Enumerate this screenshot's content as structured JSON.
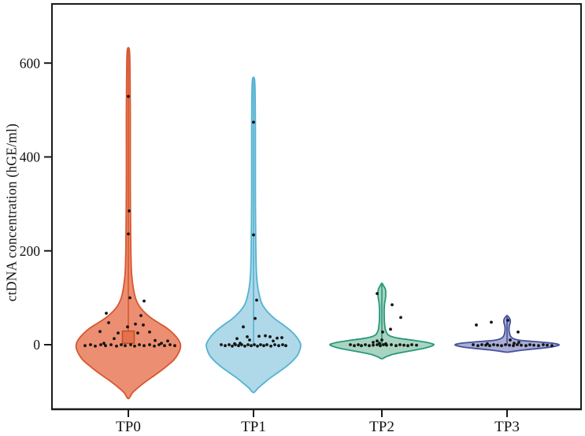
{
  "figure": {
    "background": "#ffffff",
    "frame_color": "#1a1a1a"
  },
  "chart_data": {
    "type": "violin",
    "title": "",
    "xlabel": "",
    "ylabel": "ctDNA concentration (hGE/ml)",
    "categories": [
      "TP0",
      "TP1",
      "TP2",
      "TP3"
    ],
    "yticks": [
      0,
      200,
      400,
      600
    ],
    "ylim": [
      -137,
      726
    ],
    "grid": false,
    "legend": "none",
    "point_color": "#141414",
    "groups": [
      {
        "label": "TP0",
        "fill": "#EC8E71",
        "stroke": "#D6572F",
        "range": [
          -115,
          633
        ],
        "profile": [
          [
            633,
            0
          ],
          [
            622,
            1.6
          ],
          [
            570,
            2.2
          ],
          [
            500,
            2.5
          ],
          [
            430,
            2.5
          ],
          [
            360,
            2.5
          ],
          [
            290,
            2.7
          ],
          [
            230,
            3
          ],
          [
            185,
            3.4
          ],
          [
            155,
            4
          ],
          [
            130,
            5.5
          ],
          [
            110,
            7.5
          ],
          [
            95,
            10
          ],
          [
            82,
            14
          ],
          [
            70,
            20
          ],
          [
            58,
            28
          ],
          [
            46,
            39
          ],
          [
            34,
            50
          ],
          [
            22,
            58
          ],
          [
            12,
            63
          ],
          [
            2,
            66
          ],
          [
            -8,
            66
          ],
          [
            -20,
            63
          ],
          [
            -32,
            58
          ],
          [
            -44,
            50
          ],
          [
            -56,
            41
          ],
          [
            -68,
            31
          ],
          [
            -80,
            21
          ],
          [
            -92,
            12
          ],
          [
            -103,
            5
          ],
          [
            -115,
            0
          ]
        ],
        "center_line": [
          630,
          20
        ],
        "box": {
          "lo": 3,
          "hi": 29,
          "halfwidth": 7.5,
          "fill": "#E3734E",
          "stroke": "#C64D27"
        },
        "points": [
          [
            0,
            529
          ],
          [
            1,
            285
          ],
          [
            0,
            236
          ],
          [
            2,
            100
          ],
          [
            20,
            93
          ],
          [
            -28,
            67
          ],
          [
            16,
            62
          ],
          [
            -25,
            47
          ],
          [
            9,
            44
          ],
          [
            19,
            42
          ],
          [
            -1,
            38
          ],
          [
            -36,
            28
          ],
          [
            27,
            27
          ],
          [
            12,
            25
          ],
          [
            -13,
            25
          ],
          [
            -18,
            13
          ],
          [
            34,
            9
          ],
          [
            50,
            8
          ],
          [
            -31,
            3
          ],
          [
            42,
            3
          ],
          [
            -55,
            -2
          ],
          [
            -48,
            0
          ],
          [
            -42,
            -3
          ],
          [
            -35,
            0
          ],
          [
            -29,
            -2
          ],
          [
            -22,
            0
          ],
          [
            -15,
            -3
          ],
          [
            -9,
            0
          ],
          [
            -4,
            -2
          ],
          [
            3,
            0
          ],
          [
            8,
            -3
          ],
          [
            14,
            0
          ],
          [
            20,
            -2
          ],
          [
            27,
            0
          ],
          [
            33,
            -3
          ],
          [
            39,
            0
          ],
          [
            46,
            -2
          ],
          [
            53,
            0
          ],
          [
            59,
            -2
          ]
        ]
      },
      {
        "label": "TP1",
        "fill": "#AFD8E8",
        "stroke": "#54B2D3",
        "range": [
          -102,
          570
        ],
        "profile": [
          [
            570,
            0
          ],
          [
            560,
            1.6
          ],
          [
            510,
            2.2
          ],
          [
            450,
            2.4
          ],
          [
            390,
            2.4
          ],
          [
            330,
            2.4
          ],
          [
            270,
            2.6
          ],
          [
            215,
            2.9
          ],
          [
            175,
            3.3
          ],
          [
            145,
            4
          ],
          [
            122,
            5.5
          ],
          [
            105,
            7.5
          ],
          [
            90,
            10
          ],
          [
            78,
            14
          ],
          [
            66,
            20
          ],
          [
            54,
            28
          ],
          [
            42,
            38
          ],
          [
            30,
            47
          ],
          [
            18,
            54
          ],
          [
            8,
            58
          ],
          [
            0,
            60
          ],
          [
            -10,
            59
          ],
          [
            -22,
            56
          ],
          [
            -34,
            50
          ],
          [
            -46,
            42
          ],
          [
            -58,
            32
          ],
          [
            -70,
            22
          ],
          [
            -82,
            13
          ],
          [
            -92,
            6
          ],
          [
            -102,
            0
          ]
        ],
        "center_line": [
          567,
          0
        ],
        "box": null,
        "points": [
          [
            0,
            474
          ],
          [
            0,
            234
          ],
          [
            4,
            95
          ],
          [
            2,
            56
          ],
          [
            -13,
            38
          ],
          [
            -21,
            13
          ],
          [
            -8,
            17
          ],
          [
            7,
            18
          ],
          [
            15,
            19
          ],
          [
            21,
            17
          ],
          [
            30,
            14
          ],
          [
            36,
            15
          ],
          [
            -5,
            10
          ],
          [
            25,
            8
          ],
          [
            -17,
            3
          ],
          [
            -24,
            2
          ],
          [
            -41,
            0
          ],
          [
            -36,
            -2
          ],
          [
            -31,
            0
          ],
          [
            -27,
            -3
          ],
          [
            -23,
            0
          ],
          [
            -19,
            -2
          ],
          [
            -15,
            0
          ],
          [
            -11,
            -3
          ],
          [
            -7,
            0
          ],
          [
            -3,
            -2
          ],
          [
            1,
            0
          ],
          [
            5,
            -3
          ],
          [
            9,
            0
          ],
          [
            13,
            -2
          ],
          [
            17,
            0
          ],
          [
            22,
            -3
          ],
          [
            27,
            0
          ],
          [
            32,
            -2
          ],
          [
            37,
            0
          ],
          [
            41,
            -2
          ]
        ]
      },
      {
        "label": "TP2",
        "fill": "#A9D4BF",
        "stroke": "#27997D",
        "range": [
          -30,
          131
        ],
        "profile": [
          [
            131,
            0
          ],
          [
            126,
            2
          ],
          [
            118,
            4.5
          ],
          [
            108,
            5
          ],
          [
            98,
            4.5
          ],
          [
            88,
            3.5
          ],
          [
            75,
            3
          ],
          [
            62,
            3
          ],
          [
            50,
            3.2
          ],
          [
            40,
            3.8
          ],
          [
            32,
            4.5
          ],
          [
            26,
            6
          ],
          [
            21,
            8
          ],
          [
            17,
            13
          ],
          [
            13,
            24
          ],
          [
            9,
            42
          ],
          [
            5,
            57
          ],
          [
            2,
            64
          ],
          [
            0,
            66
          ],
          [
            -3,
            63
          ],
          [
            -7,
            55
          ],
          [
            -11,
            43
          ],
          [
            -16,
            27
          ],
          [
            -21,
            13
          ],
          [
            -26,
            5
          ],
          [
            -30,
            0
          ]
        ],
        "center_line": [
          128,
          -2
        ],
        "box": null,
        "points": [
          [
            -6,
            109
          ],
          [
            13,
            85
          ],
          [
            24,
            58
          ],
          [
            11,
            33
          ],
          [
            1,
            27
          ],
          [
            0,
            10
          ],
          [
            -6,
            8
          ],
          [
            -11,
            5
          ],
          [
            -3,
            3
          ],
          [
            5,
            2
          ],
          [
            -40,
            0
          ],
          [
            -35,
            -2
          ],
          [
            -30,
            0
          ],
          [
            -26,
            -2
          ],
          [
            -21,
            0
          ],
          [
            -16,
            -2
          ],
          [
            -11,
            -1
          ],
          [
            -6,
            0
          ],
          [
            -2,
            -2
          ],
          [
            2,
            0
          ],
          [
            6,
            -1
          ],
          [
            12,
            0
          ],
          [
            18,
            -2
          ],
          [
            23,
            0
          ],
          [
            28,
            -1
          ],
          [
            33,
            -2
          ],
          [
            38,
            0
          ],
          [
            44,
            -1
          ]
        ]
      },
      {
        "label": "TP3",
        "fill": "#A9AED3",
        "stroke": "#45509D",
        "range": [
          -16,
          62
        ],
        "profile": [
          [
            62,
            0
          ],
          [
            58,
            2.5
          ],
          [
            53,
            4
          ],
          [
            47,
            4
          ],
          [
            41,
            3
          ],
          [
            34,
            2.5
          ],
          [
            28,
            2.8
          ],
          [
            22,
            3.5
          ],
          [
            17,
            5
          ],
          [
            13,
            8
          ],
          [
            10,
            14
          ],
          [
            8,
            24
          ],
          [
            6,
            40
          ],
          [
            4,
            54
          ],
          [
            2,
            62
          ],
          [
            0,
            66
          ],
          [
            -2,
            64
          ],
          [
            -5,
            56
          ],
          [
            -8,
            40
          ],
          [
            -11,
            22
          ],
          [
            -14,
            9
          ],
          [
            -16,
            0
          ]
        ],
        "center_line": [
          60,
          0
        ],
        "box": null,
        "points": [
          [
            -39,
            42
          ],
          [
            -20,
            48
          ],
          [
            1,
            52
          ],
          [
            14,
            27
          ],
          [
            4,
            10
          ],
          [
            15,
            5
          ],
          [
            9,
            3
          ],
          [
            -25,
            2
          ],
          [
            -43,
            0
          ],
          [
            -37,
            -2
          ],
          [
            -32,
            0
          ],
          [
            -27,
            -1
          ],
          [
            -22,
            -2
          ],
          [
            -17,
            0
          ],
          [
            -12,
            -1
          ],
          [
            -7,
            -2
          ],
          [
            -2,
            0
          ],
          [
            3,
            -1
          ],
          [
            8,
            -2
          ],
          [
            13,
            0
          ],
          [
            18,
            -1
          ],
          [
            24,
            -2
          ],
          [
            29,
            0
          ],
          [
            34,
            -1
          ],
          [
            40,
            -2
          ],
          [
            46,
            0
          ],
          [
            51,
            -1
          ],
          [
            57,
            -2
          ]
        ]
      }
    ]
  }
}
